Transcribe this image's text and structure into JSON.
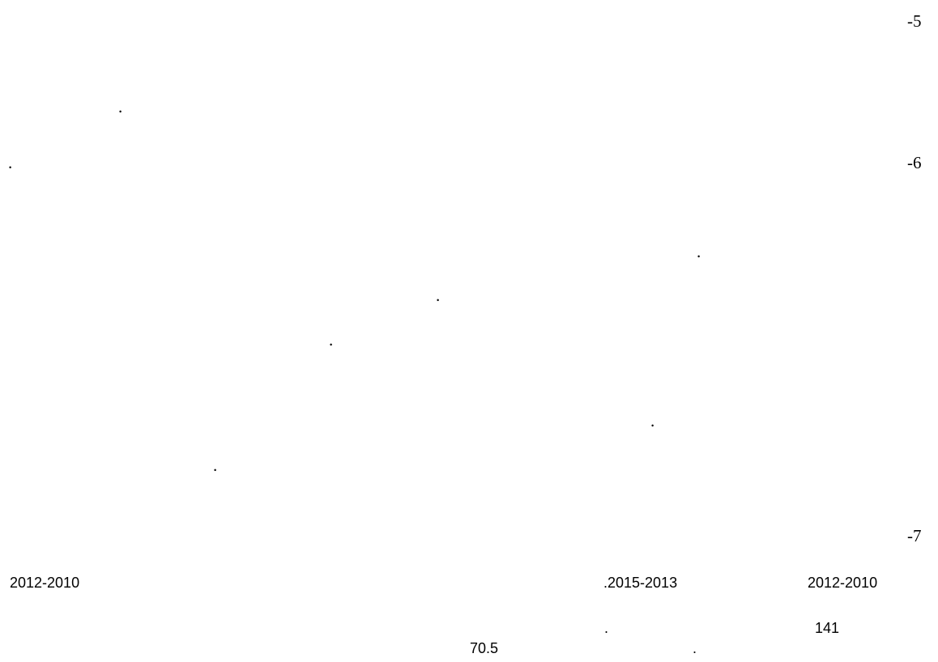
{
  "items": [
    {
      "label": "-5"
    },
    {
      "label": "."
    },
    {
      "label": "."
    },
    {
      "label": "-6"
    },
    {
      "label": "."
    },
    {
      "label": "."
    },
    {
      "label": "."
    },
    {
      "label": "."
    },
    {
      "label": "."
    },
    {
      "label": "-7"
    },
    {
      "label": "2012-2010"
    },
    {
      "label": ".2015-2013"
    },
    {
      "label": "2012-2010"
    },
    {
      "label": "141"
    },
    {
      "label": "."
    },
    {
      "label": "70.5"
    },
    {
      "label": "."
    }
  ]
}
